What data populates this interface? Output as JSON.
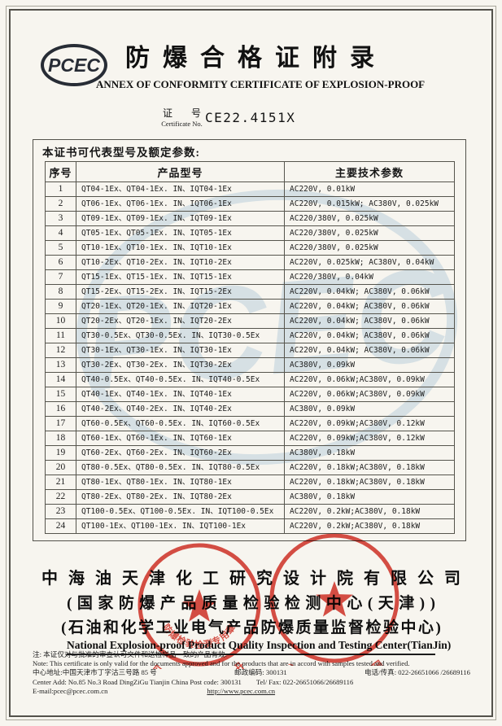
{
  "page": {
    "paper_color": "#f7f5ef",
    "ink_color": "#161616",
    "stamp_red": "#d5382d",
    "watermark_blue": "#b7cdda"
  },
  "header": {
    "logo_text": "PCEC",
    "title_cn": "防爆合格证附录",
    "title_en": "ANNEX OF CONFORMITY CERTIFICATE OF EXPLOSION-PROOF",
    "cert_label_cn": "证 号",
    "cert_label_en": "Certificate No.",
    "cert_no": "CE22.4151X"
  },
  "table": {
    "caption": "本证书可代表型号及额定参数:",
    "columns": [
      "序号",
      "产品型号",
      "主要技术参数"
    ],
    "rows": [
      [
        "1",
        "QT04-1Ex、QT04-1Ex. IN、IQT04-1Ex",
        "AC220V, 0.01kW"
      ],
      [
        "2",
        "QT06-1Ex、QT06-1Ex. IN、IQT06-1Ex",
        "AC220V, 0.015kW; AC380V, 0.025kW"
      ],
      [
        "3",
        "QT09-1Ex、QT09-1Ex. IN、IQT09-1Ex",
        "AC220/380V, 0.025kW"
      ],
      [
        "4",
        "QT05-1Ex、QT05-1Ex. IN、IQT05-1Ex",
        "AC220/380V, 0.025kW"
      ],
      [
        "5",
        "QT10-1Ex、QT10-1Ex. IN、IQT10-1Ex",
        "AC220/380V, 0.025kW"
      ],
      [
        "6",
        "QT10-2Ex、QT10-2Ex. IN、IQT10-2Ex",
        "AC220V, 0.025kW; AC380V, 0.04kW"
      ],
      [
        "7",
        "QT15-1Ex、QT15-1Ex. IN、IQT15-1Ex",
        "AC220/380V, 0.04kW"
      ],
      [
        "8",
        "QT15-2Ex、QT15-2Ex. IN、IQT15-2Ex",
        "AC220V, 0.04kW; AC380V, 0.06kW"
      ],
      [
        "9",
        "QT20-1Ex、QT20-1Ex. IN、IQT20-1Ex",
        "AC220V, 0.04kW; AC380V, 0.06kW"
      ],
      [
        "10",
        "QT20-2Ex、QT20-1Ex. IN、IQT20-2Ex",
        "AC220V, 0.04kW; AC380V, 0.06kW"
      ],
      [
        "11",
        "QT30-0.5Ex、QT30-0.5Ex. IN、IQT30-0.5Ex",
        "AC220V, 0.04kW; AC380V, 0.06kW"
      ],
      [
        "12",
        "QT30-1Ex、QT30-1Ex. IN、IQT30-1Ex",
        "AC220V, 0.04kW; AC380V, 0.06kW"
      ],
      [
        "13",
        "QT30-2Ex、QT30-2Ex. IN、IQT30-2Ex",
        "AC380V, 0.09kW"
      ],
      [
        "14",
        "QT40-0.5Ex、QT40-0.5Ex. IN、IQT40-0.5Ex",
        "AC220V, 0.06kW;AC380V, 0.09kW"
      ],
      [
        "15",
        "QT40-1Ex、QT40-1Ex. IN、IQT40-1Ex",
        "AC220V, 0.06kW;AC380V, 0.09kW"
      ],
      [
        "16",
        "QT40-2Ex、QT40-2Ex. IN、IQT40-2Ex",
        "AC380V, 0.09kW"
      ],
      [
        "17",
        "QT60-0.5Ex、QT60-0.5Ex. IN、IQT60-0.5Ex",
        "AC220V, 0.09kW;AC380V, 0.12kW"
      ],
      [
        "18",
        "QT60-1Ex、QT60-1Ex. IN、IQT60-1Ex",
        "AC220V, 0.09kW;AC380V, 0.12kW"
      ],
      [
        "19",
        "QT60-2Ex、QT60-2Ex. IN、IQT60-2Ex",
        "AC380V, 0.18kW"
      ],
      [
        "20",
        "QT80-0.5Ex、QT80-0.5Ex. IN、IQT80-0.5Ex",
        "AC220V, 0.18kW;AC380V, 0.18kW"
      ],
      [
        "21",
        "QT80-1Ex、QT80-1Ex. IN、IQT80-1Ex",
        "AC220V, 0.18kW;AC380V, 0.18kW"
      ],
      [
        "22",
        "QT80-2Ex、QT80-2Ex. IN、IQT80-2Ex",
        "AC380V, 0.18kW"
      ],
      [
        "23",
        "QT100-0.5Ex、QT100-0.5Ex. IN、IQT100-0.5Ex",
        "AC220V, 0.2kW;AC380V, 0.18kW"
      ],
      [
        "24",
        "QT100-1Ex、QT100-1Ex. IN、IQT100-1Ex",
        "AC220V, 0.2kW;AC380V, 0.18kW"
      ]
    ]
  },
  "watermark": {
    "text": "PCEC"
  },
  "company": {
    "line1": "中海油天津化工研究设计院有限公司",
    "line2": "(国家防爆产品质量检验检测中心(天津))",
    "line3": "(石油和化学工业电气产品防爆质量监督检验中心)",
    "line_en": "National Explosion-proof Product Quality Inspection and Testing Center(TianJin)"
  },
  "stamps": {
    "left_ring_text": "中海油天津化工研究设计院有限公司",
    "left_bottom_text": "防爆检验检测专用章",
    "right_ring_text": "国家防爆产品质量检验检测中心(天津)"
  },
  "notes": {
    "note_cn": "注: 本证仅对与批准的审查认可文件和送检样品一致的产品有效.",
    "note_en": "Note: This certificate is only valid for the documents approved and for the products that are in accord with samples tested and verified.",
    "addr_cn": "中心地址:中国天津市丁字沽三号路 85 号",
    "post_cn": "邮政编码: 300131",
    "telfax_cn": "电话/传真: 022-26651066 /26689116",
    "addr_en": "Center Add: No.85 No.3 Road DingZiGu Tianjin China Post code: 300131",
    "telfax_en": "Tel/ Fax: 022-26651066/26689116",
    "email": "E-mail:pcec@pcec.com.cn",
    "website": "http://www.pcec.com.cn"
  }
}
